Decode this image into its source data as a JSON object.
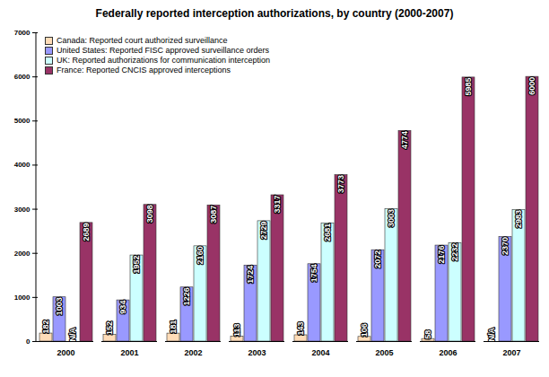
{
  "chart_data": {
    "type": "bar",
    "title": "Federally reported interception authorizations, by country (2000-2007)",
    "categories": [
      "2000",
      "2001",
      "2002",
      "2003",
      "2004",
      "2005",
      "2006",
      "2007"
    ],
    "series": [
      {
        "name": "Canada: Reported court authorized surveillance",
        "color": "#ffdcb8",
        "values": [
          182,
          152,
          181,
          113,
          143,
          106,
          58,
          null
        ],
        "value_labels": [
          "182",
          "152",
          "181",
          "113",
          "143",
          "106",
          "58",
          "N/A"
        ]
      },
      {
        "name": "United States: Reported FISC approved surveillance orders",
        "color": "#9999ff",
        "values": [
          1003,
          934,
          1226,
          1724,
          1754,
          2072,
          2176,
          2370
        ]
      },
      {
        "name": "UK: Reported authorizations for communication interception",
        "color": "#ccffff",
        "values": [
          null,
          1952,
          2160,
          2729,
          2681,
          3003,
          2232,
          2983
        ],
        "value_labels": [
          "N/A",
          "1952",
          "2160",
          "2729",
          "2681",
          "3003",
          "2232",
          "2983"
        ]
      },
      {
        "name": "France: Reported CNCIS approved interceptions",
        "color": "#993366",
        "values": [
          2689,
          3098,
          3087,
          3317,
          3773,
          4774,
          5985,
          6000
        ]
      }
    ],
    "ylim": [
      0,
      7000
    ],
    "yticks": [
      0,
      1000,
      2000,
      3000,
      4000,
      5000,
      6000,
      7000
    ],
    "grid": false,
    "legend": "upper left",
    "data_labels": true
  }
}
